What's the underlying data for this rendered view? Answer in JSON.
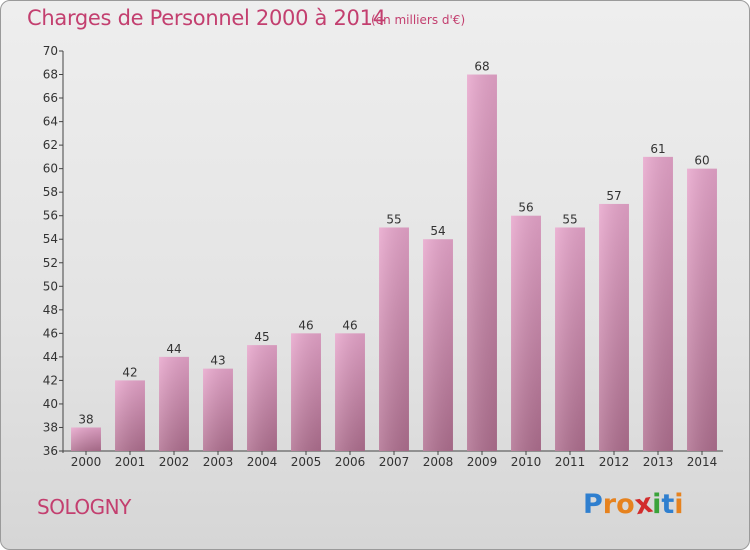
{
  "chart_data": {
    "type": "bar",
    "title": "Charges de Personnel 2000 à 2014",
    "subtitle": "(en milliers d'€)",
    "categories": [
      "2000",
      "2001",
      "2002",
      "2003",
      "2004",
      "2005",
      "2006",
      "2007",
      "2008",
      "2009",
      "2010",
      "2011",
      "2012",
      "2013",
      "2014"
    ],
    "values": [
      38,
      42,
      44,
      43,
      45,
      46,
      46,
      55,
      54,
      68,
      56,
      55,
      57,
      61,
      60
    ],
    "ylim": [
      36,
      70
    ],
    "yticks": [
      36,
      38,
      40,
      42,
      44,
      46,
      48,
      50,
      52,
      54,
      56,
      58,
      60,
      62,
      64,
      66,
      68,
      70
    ],
    "grid": false,
    "bar_color_top": "#e8a6cc",
    "bar_color_bottom": "#b07090"
  },
  "commune": "SOLOGNY",
  "logo": {
    "letters": [
      "P",
      "r",
      "o",
      "x",
      "i",
      "t",
      "i"
    ],
    "colors": [
      "#2f7fcf",
      "#e6821e",
      "#e6821e",
      "#d22c2c",
      "#3aa33a",
      "#2f7fcf",
      "#e6821e"
    ]
  },
  "colors": {
    "accent": "#c33f6f"
  }
}
